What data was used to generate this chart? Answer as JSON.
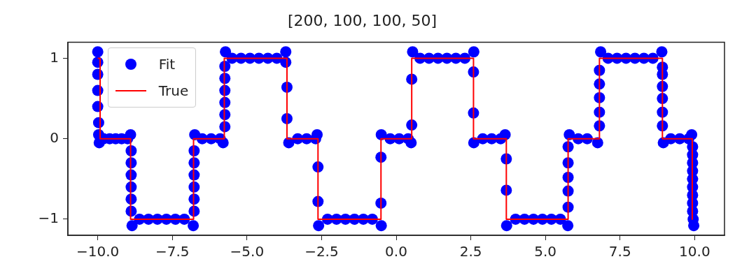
{
  "chart_data": {
    "type": "scatter",
    "title": "[200, 100, 100, 50]",
    "xlim": [
      -11,
      11
    ],
    "ylim": [
      -1.2,
      1.2
    ],
    "xticks": [
      {
        "value": -10,
        "label": "−10.0"
      },
      {
        "value": -7.5,
        "label": "−7.5"
      },
      {
        "value": -5,
        "label": "−5.0"
      },
      {
        "value": -2.5,
        "label": "−2.5"
      },
      {
        "value": 0,
        "label": "0.0"
      },
      {
        "value": 2.5,
        "label": "2.5"
      },
      {
        "value": 5,
        "label": "5.0"
      },
      {
        "value": 7.5,
        "label": "7.5"
      },
      {
        "value": 10,
        "label": "10.0"
      }
    ],
    "yticks": [
      {
        "value": -1,
        "label": "−1"
      },
      {
        "value": 0,
        "label": "0"
      },
      {
        "value": 1,
        "label": "1"
      }
    ],
    "grid": false,
    "legend": "top left",
    "series": [
      {
        "name": "Fit",
        "marker": "circle",
        "color": "#0000ff",
        "x": [
          -10,
          -10,
          -10,
          -10,
          -10,
          -9.97,
          -9.97,
          -9.95,
          -9.8,
          -9.6,
          -9.4,
          -9.2,
          -9.0,
          -8.9,
          -8.88,
          -8.88,
          -8.88,
          -8.88,
          -8.88,
          -8.88,
          -8.85,
          -8.6,
          -8.3,
          -8.0,
          -7.7,
          -7.4,
          -7.1,
          -6.8,
          -6.77,
          -6.77,
          -6.77,
          -6.77,
          -6.77,
          -6.77,
          -6.75,
          -6.5,
          -6.2,
          -5.9,
          -5.8,
          -5.74,
          -5.74,
          -5.74,
          -5.74,
          -5.74,
          -5.74,
          -5.72,
          -5.5,
          -5.2,
          -4.9,
          -4.6,
          -4.3,
          -4.0,
          -3.7,
          -3.7,
          -3.66,
          -3.66,
          -3.6,
          -3.3,
          -3.0,
          -2.7,
          -2.65,
          -2.62,
          -2.62,
          -2.6,
          -2.3,
          -2.0,
          -1.7,
          -1.4,
          -1.1,
          -0.8,
          -0.5,
          -0.51,
          -0.51,
          -0.5,
          -0.2,
          0.1,
          0.4,
          0.5,
          0.52,
          0.52,
          0.55,
          0.8,
          1.1,
          1.4,
          1.7,
          2.0,
          2.3,
          2.6,
          2.59,
          2.59,
          2.6,
          2.9,
          3.2,
          3.5,
          3.65,
          3.69,
          3.69,
          3.7,
          4.0,
          4.3,
          4.6,
          4.9,
          5.2,
          5.5,
          5.75,
          5.76,
          5.76,
          5.76,
          5.76,
          5.76,
          5.8,
          6.1,
          6.4,
          6.75,
          6.81,
          6.81,
          6.81,
          6.81,
          6.81,
          6.85,
          7.1,
          7.4,
          7.7,
          8.0,
          8.3,
          8.6,
          8.9,
          8.92,
          8.92,
          8.92,
          8.92,
          8.92,
          8.92,
          8.95,
          9.2,
          9.5,
          9.8,
          9.9,
          9.93,
          9.93,
          9.93,
          9.93,
          9.93,
          9.93,
          9.93,
          9.93,
          9.93,
          9.95,
          9.97
        ],
        "values": [
          1.08,
          0.95,
          0.8,
          0.6,
          0.4,
          0.2,
          0.05,
          -0.05,
          0,
          0,
          0,
          0,
          0,
          0.05,
          -0.15,
          -0.3,
          -0.45,
          -0.6,
          -0.75,
          -0.9,
          -1.08,
          -1,
          -1,
          -1,
          -1,
          -1,
          -1,
          -1.08,
          -0.9,
          -0.75,
          -0.6,
          -0.45,
          -0.3,
          -0.15,
          0.05,
          0,
          0,
          0,
          -0.05,
          0.15,
          0.3,
          0.45,
          0.6,
          0.75,
          0.9,
          1.08,
          1,
          1,
          1,
          1,
          1,
          1,
          1.08,
          0.95,
          0.64,
          0.25,
          -0.05,
          0,
          0,
          0,
          0.05,
          -0.35,
          -0.78,
          -1.08,
          -1,
          -1,
          -1,
          -1,
          -1,
          -1,
          -1.08,
          -0.8,
          -0.23,
          0.05,
          0,
          0,
          0,
          -0.05,
          0.17,
          0.74,
          1.08,
          1,
          1,
          1,
          1,
          1,
          1,
          1.08,
          0.83,
          0.32,
          -0.05,
          0,
          0,
          0,
          0.05,
          -0.25,
          -0.64,
          -1.08,
          -1,
          -1,
          -1,
          -1,
          -1,
          -1,
          -1.08,
          -0.85,
          -0.65,
          -0.48,
          -0.3,
          -0.1,
          0.05,
          0,
          0,
          -0.05,
          0.16,
          0.33,
          0.51,
          0.68,
          0.85,
          1.08,
          1,
          1,
          1,
          1,
          1,
          1,
          1.08,
          0.89,
          0.8,
          0.65,
          0.5,
          0.33,
          0.16,
          -0.05,
          0,
          0,
          0,
          0.05,
          -0.1,
          -0.2,
          -0.3,
          -0.4,
          -0.5,
          -0.6,
          -0.7,
          -0.8,
          -0.9,
          -1.0,
          -1.08
        ]
      },
      {
        "name": "True",
        "type": "line",
        "marker": "none",
        "line_style": "solid",
        "color": "#ff0000",
        "x": [
          -10,
          -9.92,
          -9.92,
          -8.9,
          -8.9,
          -6.79,
          -6.79,
          -5.76,
          -5.76,
          -3.66,
          -3.66,
          -2.62,
          -2.62,
          -0.51,
          -0.51,
          0.52,
          0.52,
          2.59,
          2.59,
          3.69,
          3.69,
          5.76,
          5.76,
          6.81,
          6.81,
          8.92,
          8.92,
          9.92,
          9.92
        ],
        "values": [
          1,
          1,
          0,
          0,
          -1,
          -1,
          0,
          0,
          1,
          1,
          0,
          0,
          -1,
          -1,
          0,
          0,
          1,
          1,
          0,
          0,
          -1,
          -1,
          0,
          0,
          1,
          1,
          0,
          0,
          -1
        ]
      }
    ]
  }
}
